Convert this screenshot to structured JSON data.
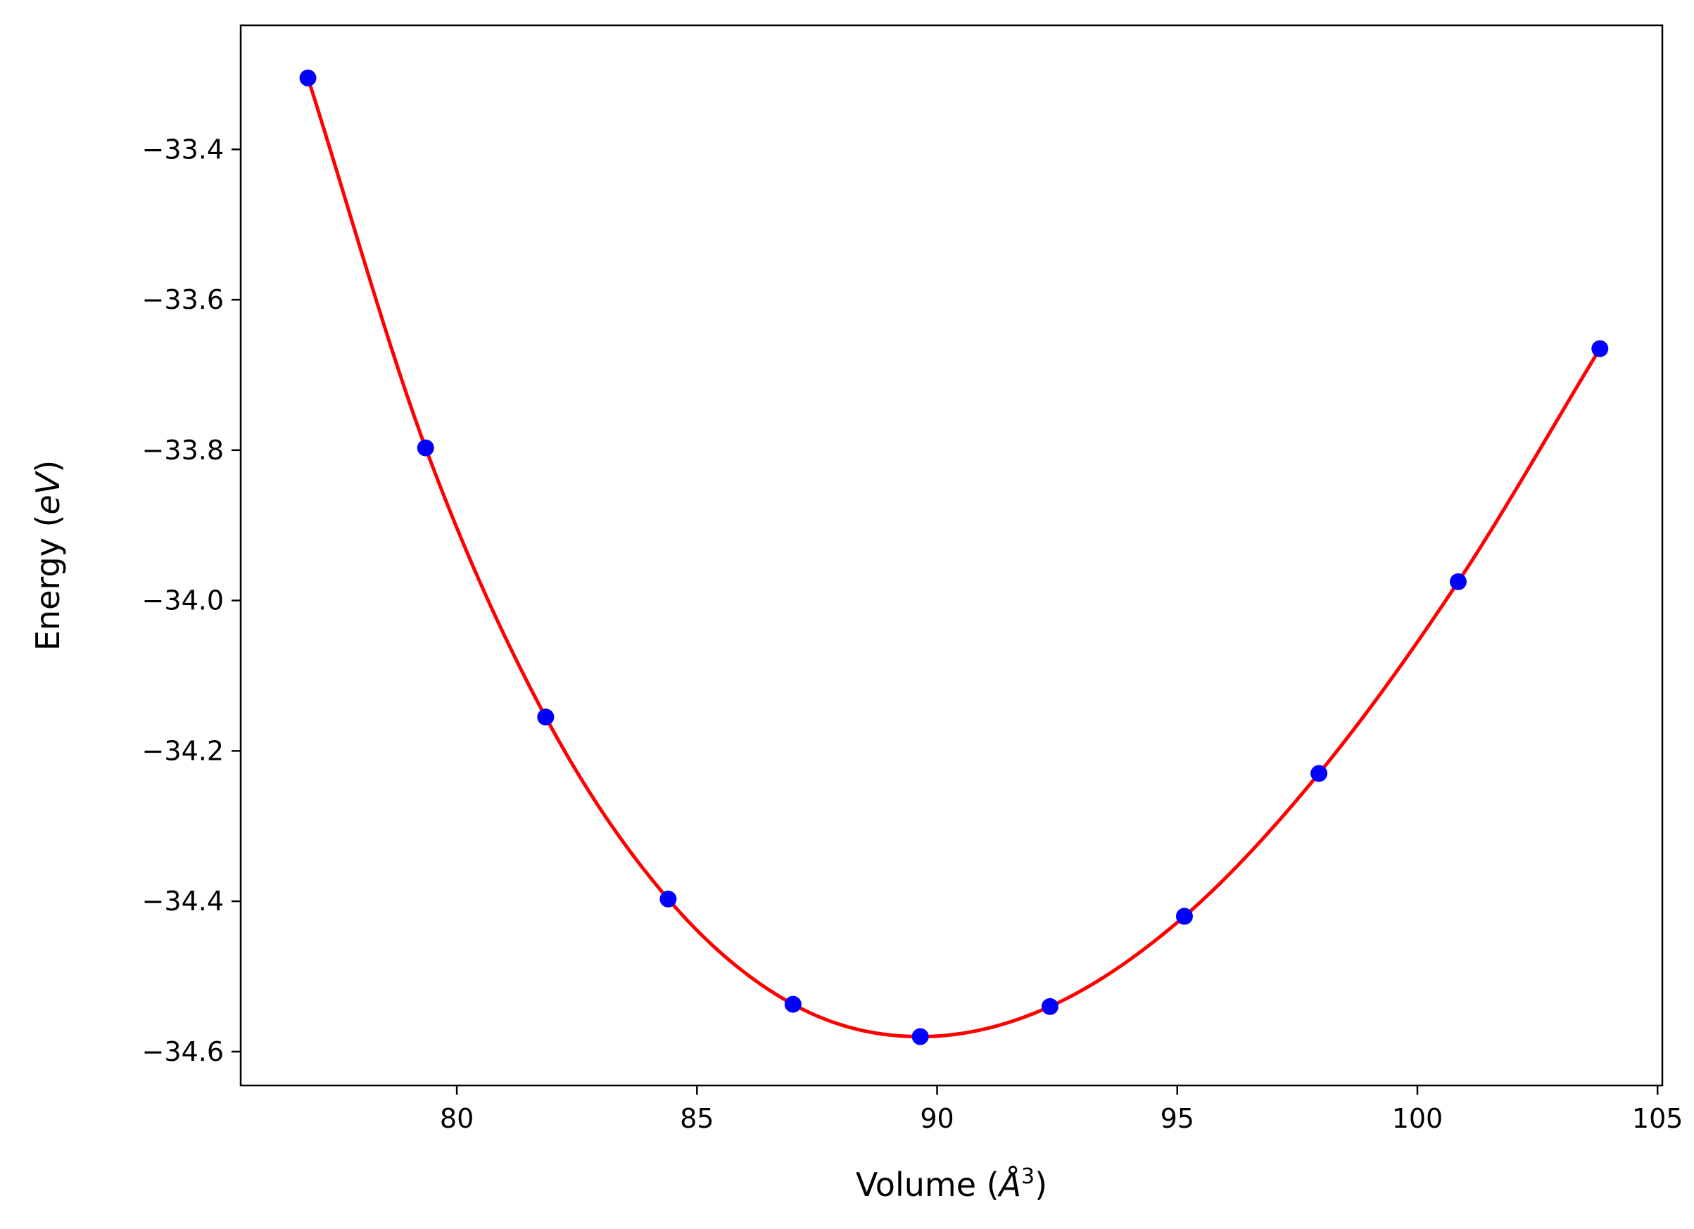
{
  "chart_data": {
    "type": "line",
    "title": "",
    "xlabel": {
      "prefix": "Volume (",
      "unit": "Å",
      "exponent": "3",
      "suffix": ")"
    },
    "ylabel": {
      "prefix": "Energy (",
      "unit": "eV",
      "suffix": ")"
    },
    "xlim": [
      75.5,
      105.1
    ],
    "ylim": [
      -34.645,
      -33.235
    ],
    "xticks": [
      80,
      85,
      90,
      95,
      100,
      105
    ],
    "yticks": [
      -34.6,
      -34.4,
      -34.2,
      -34.0,
      -33.8,
      -33.6,
      -33.4
    ],
    "grid": false,
    "legend": false,
    "series": [
      {
        "kind": "scatter",
        "color": "#0000ff",
        "x": [
          76.9,
          79.35,
          81.85,
          84.4,
          87.0,
          89.65,
          92.35,
          95.15,
          97.95,
          100.85,
          103.8
        ],
        "y": [
          -33.305,
          -33.797,
          -34.155,
          -34.397,
          -34.537,
          -34.58,
          -34.54,
          -34.42,
          -34.23,
          -33.975,
          -33.665
        ]
      },
      {
        "kind": "line",
        "color": "#ff0000",
        "x": [
          76.9,
          79.35,
          81.85,
          84.4,
          87.0,
          89.65,
          92.35,
          95.15,
          97.95,
          100.85,
          103.8
        ],
        "y": [
          -33.305,
          -33.797,
          -34.155,
          -34.397,
          -34.537,
          -34.58,
          -34.54,
          -34.42,
          -34.23,
          -33.975,
          -33.665
        ]
      }
    ]
  }
}
